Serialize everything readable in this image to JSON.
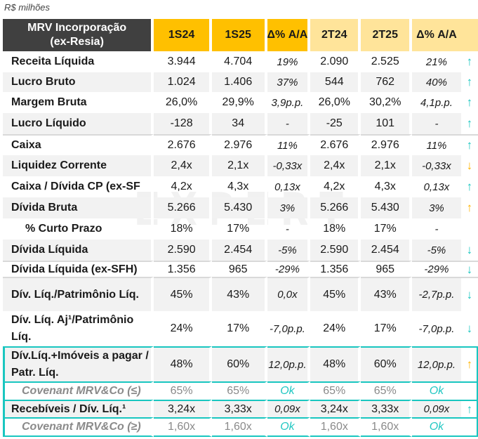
{
  "unit_label": "R$ milhões",
  "watermark": "EXPERT",
  "table": {
    "header": {
      "label": "MRV Incorporação (ex-Resia)",
      "columns": [
        "1S24",
        "1S25",
        "Δ% A/A",
        "2T24",
        "2T25",
        "Δ% A/A"
      ]
    },
    "rows": [
      {
        "label": "Receita Líquida",
        "v": [
          "3.944",
          "4.704",
          "19%",
          "2.090",
          "2.525",
          "21%"
        ],
        "arrow": "↑",
        "arrow_color": "teal"
      },
      {
        "label": "Lucro Bruto",
        "v": [
          "1.024",
          "1.406",
          "37%",
          "544",
          "762",
          "40%"
        ],
        "arrow": "↑",
        "arrow_color": "teal"
      },
      {
        "label": "Margem Bruta",
        "v": [
          "26,0%",
          "29,9%",
          "3,9p.p.",
          "26,0%",
          "30,2%",
          "4,1p.p."
        ],
        "arrow": "↑",
        "arrow_color": "teal"
      },
      {
        "label": "Lucro Líquido",
        "v": [
          "-128",
          "34",
          "-",
          "-25",
          "101",
          "-"
        ],
        "arrow": "↑",
        "arrow_color": "teal"
      },
      {
        "label": "Caixa",
        "v": [
          "2.676",
          "2.976",
          "11%",
          "2.676",
          "2.976",
          "11%"
        ],
        "arrow": "↑",
        "arrow_color": "teal"
      },
      {
        "label": "Liquidez Corrente",
        "v": [
          "2,4x",
          "2,1x",
          "-0,33x",
          "2,4x",
          "2,1x",
          "-0,33x"
        ],
        "arrow": "↓",
        "arrow_color": "amber"
      },
      {
        "label": "Caixa / Dívida CP (ex-SF",
        "v": [
          "4,2x",
          "4,3x",
          "0,13x",
          "4,2x",
          "4,3x",
          "0,13x"
        ],
        "arrow": "↑",
        "arrow_color": "teal"
      },
      {
        "label": "Dívida Bruta",
        "v": [
          "5.266",
          "5.430",
          "3%",
          "5.266",
          "5.430",
          "3%"
        ],
        "arrow": "↑",
        "arrow_color": "amber"
      },
      {
        "label": "% Curto Prazo",
        "v": [
          "18%",
          "17%",
          "-",
          "18%",
          "17%",
          "-"
        ],
        "arrow": "",
        "arrow_color": ""
      },
      {
        "label": "Dívida Líquida",
        "v": [
          "2.590",
          "2.454",
          "-5%",
          "2.590",
          "2.454",
          "-5%"
        ],
        "arrow": "↓",
        "arrow_color": "teal"
      },
      {
        "label": "Dívida Líquida (ex-SFH)",
        "v": [
          "1.356",
          "965",
          "-29%",
          "1.356",
          "965",
          "-29%"
        ],
        "arrow": "↓",
        "arrow_color": "teal"
      },
      {
        "label": "Dív. Líq./Patrimônio Líq.",
        "v": [
          "45%",
          "43%",
          "0,0x",
          "45%",
          "43%",
          "-2,7p.p."
        ],
        "arrow": "↓",
        "arrow_color": "teal"
      },
      {
        "label": "Dív. Líq. Aj¹/Patrimônio Líq.",
        "v": [
          "24%",
          "17%",
          "-7,0p.p.",
          "24%",
          "17%",
          "-7,0p.p."
        ],
        "arrow": "↓",
        "arrow_color": "teal"
      },
      {
        "label": "Dív.Líq.+Imóveis a pagar / Patr. Líq.",
        "v": [
          "48%",
          "60%",
          "12,0p.p.",
          "48%",
          "60%",
          "12,0p.p."
        ],
        "arrow": "↑",
        "arrow_color": "amber"
      },
      {
        "label": "Covenant MRV&Co (≤)",
        "v": [
          "65%",
          "65%",
          "Ok",
          "65%",
          "65%",
          "Ok"
        ],
        "arrow": "",
        "arrow_color": ""
      },
      {
        "label": "Recebíveis / Dív. Líq.¹",
        "v": [
          "3,24x",
          "3,33x",
          "0,09x",
          "3,24x",
          "3,33x",
          "0,09x"
        ],
        "arrow": "↑",
        "arrow_color": "teal"
      },
      {
        "label": "Covenant MRV&Co (≥)",
        "v": [
          "1,60x",
          "1,60x",
          "Ok",
          "1,60x",
          "1,60x",
          "Ok"
        ],
        "arrow": "",
        "arrow_color": ""
      }
    ]
  },
  "colors": {
    "header_dark": "#404040",
    "header_semester": "#ffc000",
    "header_quarter": "#ffe49a",
    "teal": "#19c6c0",
    "amber": "#ffb300",
    "row_shade": "#f2f2f2"
  }
}
